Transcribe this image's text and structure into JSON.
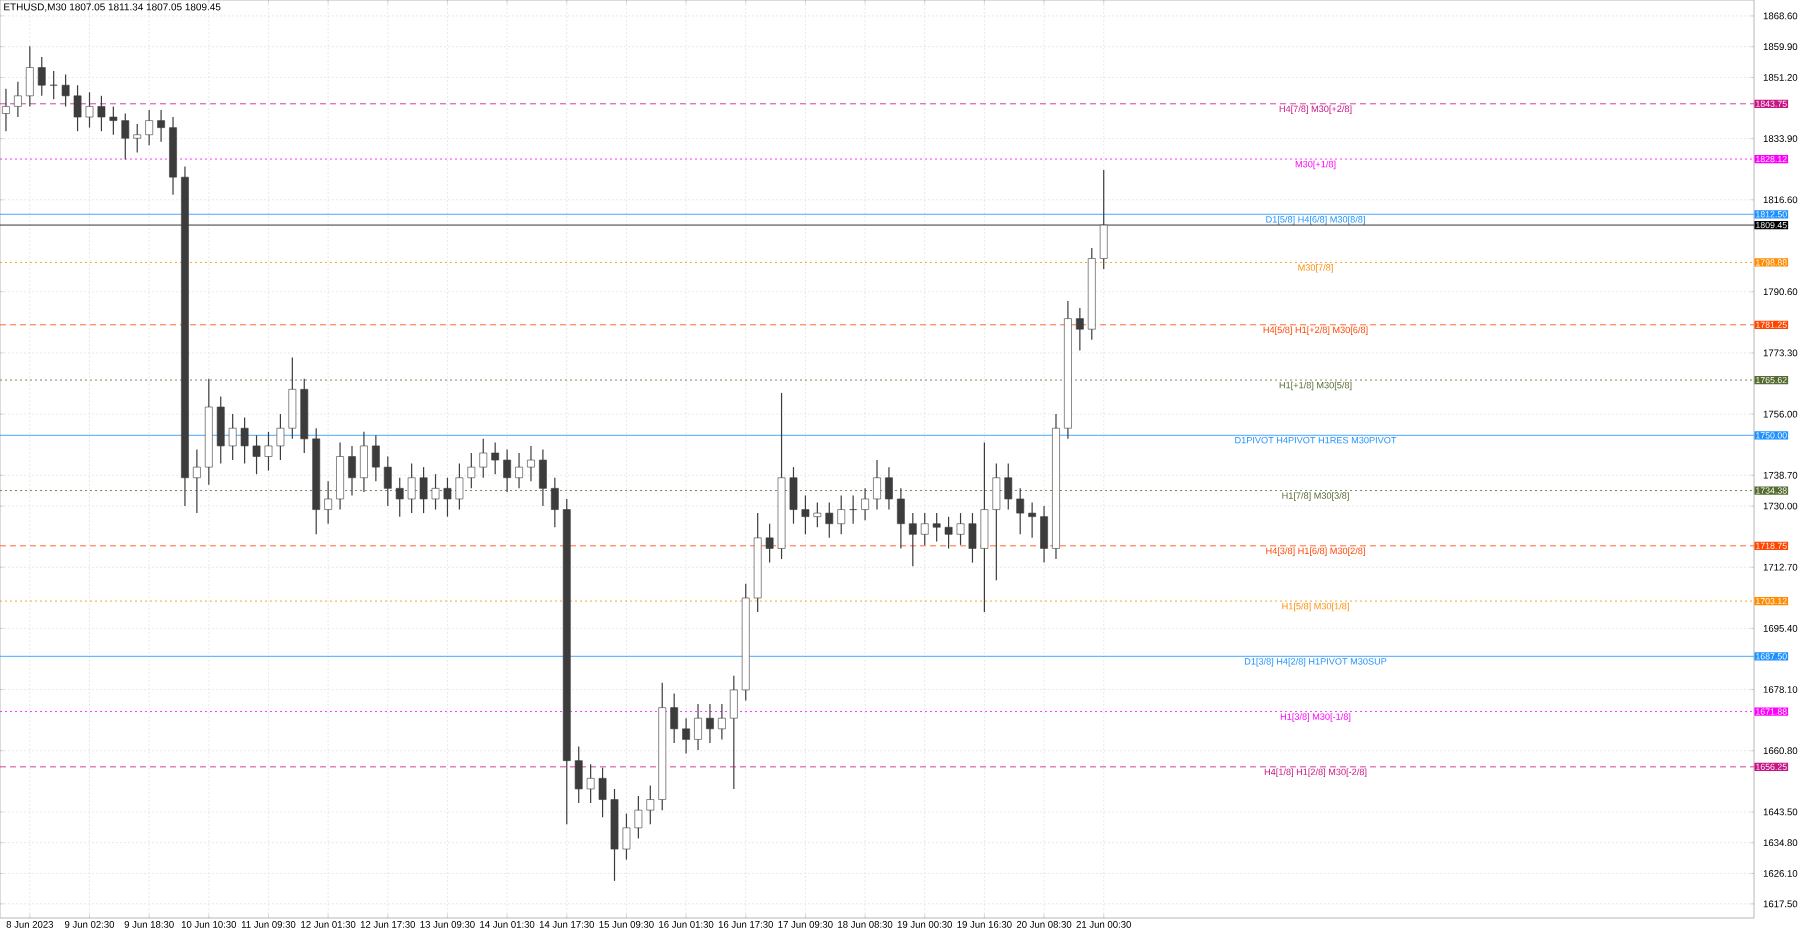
{
  "chart_data": {
    "type": "candlestick",
    "title": "ETHUSD,M30 1807.05 1811.34 1807.05 1809.45",
    "color": "#3c3c3c",
    "grid": true,
    "categories": [
      null,
      null,
      "8 Jun 2023",
      null,
      null,
      null,
      null,
      "9 Jun 02:30",
      null,
      null,
      null,
      null,
      "9 Jun 18:30",
      null,
      null,
      null,
      null,
      "10 Jun 10:30",
      null,
      null,
      null,
      null,
      "11 Jun 09:30",
      null,
      null,
      null,
      null,
      "12 Jun 01:30",
      null,
      null,
      null,
      null,
      "12 Jun 17:30",
      null,
      null,
      null,
      null,
      "13 Jun 09:30",
      null,
      null,
      null,
      null,
      "14 Jun 01:30",
      null,
      null,
      null,
      null,
      "14 Jun 17:30",
      null,
      null,
      null,
      null,
      "15 Jun 09:30",
      null,
      null,
      null,
      null,
      "16 Jun 01:30",
      null,
      null,
      null,
      null,
      "16 Jun 17:30",
      null,
      null,
      null,
      null,
      "17 Jun 09:30",
      null,
      null,
      null,
      null,
      "18 Jun 08:30",
      null,
      null,
      null,
      null,
      "19 Jun 00:30",
      null,
      null,
      null,
      null,
      "19 Jun 16:30",
      null,
      null,
      null,
      null,
      "20 Jun 08:30",
      null,
      null,
      null,
      null,
      "21 Jun 00:30",
      null,
      null,
      null,
      null,
      null,
      null,
      null,
      null,
      null,
      null,
      null,
      null,
      null,
      null,
      null,
      null,
      null,
      null,
      null,
      null,
      null,
      null,
      null,
      null,
      null,
      null,
      null,
      null,
      null,
      null,
      null,
      null,
      null,
      null,
      null,
      null,
      null,
      null,
      null,
      null,
      null,
      null,
      null,
      null,
      null,
      null,
      null,
      null,
      null,
      null,
      null,
      null,
      null,
      null
    ],
    "ohlc": [
      [
        1841,
        1848,
        1836,
        1843
      ],
      [
        1843,
        1850,
        1840,
        1846
      ],
      [
        1846,
        1860,
        1843,
        1854
      ],
      [
        1854,
        1857,
        1846,
        1849
      ],
      [
        1849,
        1853,
        1845,
        1849
      ],
      [
        1849,
        1852,
        1843,
        1846
      ],
      [
        1846,
        1849,
        1836,
        1840
      ],
      [
        1840,
        1847,
        1837,
        1843
      ],
      [
        1843,
        1846,
        1836,
        1840
      ],
      [
        1840,
        1843,
        1835,
        1839
      ],
      [
        1839,
        1841,
        1828,
        1834
      ],
      [
        1834,
        1838,
        1830,
        1835
      ],
      [
        1835,
        1842,
        1832,
        1839
      ],
      [
        1839,
        1842,
        1833,
        1837
      ],
      [
        1837,
        1840,
        1818,
        1823
      ],
      [
        1823,
        1826,
        1730,
        1738
      ],
      [
        1738,
        1746,
        1728,
        1741
      ],
      [
        1741,
        1766,
        1736,
        1758
      ],
      [
        1758,
        1761,
        1742,
        1747
      ],
      [
        1747,
        1756,
        1743,
        1752
      ],
      [
        1752,
        1755,
        1742,
        1747
      ],
      [
        1747,
        1750,
        1739,
        1744
      ],
      [
        1744,
        1751,
        1740,
        1747
      ],
      [
        1747,
        1756,
        1743,
        1752
      ],
      [
        1752,
        1772,
        1749,
        1763
      ],
      [
        1763,
        1766,
        1745,
        1749
      ],
      [
        1749,
        1752,
        1722,
        1729
      ],
      [
        1729,
        1737,
        1725,
        1732
      ],
      [
        1732,
        1748,
        1729,
        1744
      ],
      [
        1744,
        1747,
        1733,
        1738
      ],
      [
        1738,
        1751,
        1734,
        1747
      ],
      [
        1747,
        1750,
        1737,
        1741
      ],
      [
        1741,
        1744,
        1730,
        1735
      ],
      [
        1735,
        1738,
        1727,
        1732
      ],
      [
        1732,
        1742,
        1728,
        1738
      ],
      [
        1738,
        1741,
        1728,
        1732
      ],
      [
        1732,
        1739,
        1729,
        1735
      ],
      [
        1735,
        1738,
        1727,
        1732
      ],
      [
        1732,
        1742,
        1729,
        1738
      ],
      [
        1738,
        1745,
        1735,
        1741
      ],
      [
        1741,
        1749,
        1738,
        1745
      ],
      [
        1745,
        1748,
        1739,
        1743
      ],
      [
        1743,
        1746,
        1734,
        1738
      ],
      [
        1738,
        1745,
        1735,
        1741
      ],
      [
        1741,
        1747,
        1737,
        1743
      ],
      [
        1743,
        1746,
        1730,
        1735
      ],
      [
        1735,
        1738,
        1724,
        1729
      ],
      [
        1729,
        1732,
        1640,
        1658
      ],
      [
        1658,
        1662,
        1646,
        1650
      ],
      [
        1650,
        1657,
        1646,
        1653
      ],
      [
        1653,
        1656,
        1642,
        1647
      ],
      [
        1647,
        1650,
        1624,
        1633
      ],
      [
        1633,
        1643,
        1630,
        1639
      ],
      [
        1639,
        1648,
        1636,
        1644
      ],
      [
        1644,
        1651,
        1640,
        1647
      ],
      [
        1647,
        1680,
        1644,
        1673
      ],
      [
        1673,
        1677,
        1663,
        1667
      ],
      [
        1667,
        1670,
        1660,
        1664
      ],
      [
        1664,
        1674,
        1661,
        1670
      ],
      [
        1670,
        1674,
        1663,
        1667
      ],
      [
        1667,
        1674,
        1664,
        1670
      ],
      [
        1670,
        1682,
        1650,
        1678
      ],
      [
        1678,
        1708,
        1675,
        1704
      ],
      [
        1704,
        1728,
        1700,
        1721
      ],
      [
        1721,
        1725,
        1714,
        1718
      ],
      [
        1718,
        1762,
        1715,
        1738
      ],
      [
        1738,
        1741,
        1725,
        1729
      ],
      [
        1729,
        1733,
        1722,
        1727
      ],
      [
        1727,
        1731,
        1724,
        1728
      ],
      [
        1728,
        1731,
        1721,
        1725
      ],
      [
        1725,
        1733,
        1722,
        1729
      ],
      [
        1729,
        1733,
        1725,
        1729
      ],
      [
        1729,
        1735,
        1726,
        1732
      ],
      [
        1732,
        1743,
        1729,
        1738
      ],
      [
        1738,
        1741,
        1729,
        1732
      ],
      [
        1732,
        1735,
        1718,
        1725
      ],
      [
        1725,
        1728,
        1713,
        1722
      ],
      [
        1722,
        1728,
        1719,
        1725
      ],
      [
        1725,
        1728,
        1720,
        1724
      ],
      [
        1724,
        1727,
        1718,
        1722
      ],
      [
        1722,
        1728,
        1719,
        1725
      ],
      [
        1725,
        1728,
        1714,
        1718
      ],
      [
        1718,
        1748,
        1700,
        1729
      ],
      [
        1729,
        1742,
        1709,
        1738
      ],
      [
        1738,
        1742,
        1729,
        1732
      ],
      [
        1732,
        1735,
        1722,
        1728
      ],
      [
        1728,
        1731,
        1721,
        1727
      ],
      [
        1727,
        1730,
        1714,
        1718
      ],
      [
        1718,
        1756,
        1715,
        1752
      ],
      [
        1752,
        1788,
        1749,
        1783
      ],
      [
        1783,
        1786,
        1774,
        1780
      ],
      [
        1780,
        1803,
        1777,
        1800
      ],
      [
        1800,
        1825,
        1797,
        1809.45
      ],
      null,
      null,
      null,
      null,
      null,
      null,
      null,
      null,
      null,
      null,
      null,
      null,
      null,
      null,
      null,
      null,
      null,
      null,
      null,
      null,
      null,
      null,
      null,
      null,
      null,
      null,
      null,
      null,
      null,
      null,
      null,
      null,
      null,
      null,
      null,
      null,
      null,
      null,
      null,
      null,
      null,
      null,
      null,
      null,
      null,
      null,
      null,
      null,
      null,
      null,
      null,
      null,
      null,
      null
    ],
    "ylim": [
      1613.5,
      1873.1
    ],
    "yticks": [
      {
        "value": 1868.6,
        "label": "1868.60"
      },
      {
        "value": 1859.9,
        "label": "1859.90"
      },
      {
        "value": 1851.2,
        "label": "1851.20"
      },
      {
        "value": 1833.9,
        "label": "1833.90"
      },
      {
        "value": 1816.6,
        "label": "1816.60"
      },
      {
        "value": 1790.6,
        "label": "1790.60"
      },
      {
        "value": 1773.3,
        "label": "1773.30"
      },
      {
        "value": 1756.0,
        "label": "1756.00"
      },
      {
        "value": 1738.7,
        "label": "1738.70"
      },
      {
        "value": 1730.0,
        "label": "1730.00"
      },
      {
        "value": 1712.7,
        "label": "1712.70"
      },
      {
        "value": 1695.4,
        "label": "1695.40"
      },
      {
        "value": 1678.1,
        "label": "1678.10"
      },
      {
        "value": 1660.8,
        "label": "1660.80"
      },
      {
        "value": 1643.5,
        "label": "1643.50"
      },
      {
        "value": 1634.8,
        "label": "1634.80"
      },
      {
        "value": 1626.1,
        "label": "1626.10"
      },
      {
        "value": 1617.5,
        "label": "1617.50"
      }
    ],
    "ref_lines": [
      {
        "axis": "y",
        "value": 1843.75,
        "label": "H4[7/8] M30[+2/8]",
        "color": "#c71585",
        "line_style": "dashed"
      },
      {
        "axis": "y",
        "value": 1828.12,
        "label": "M30[+1/8]",
        "color": "#ff00ff",
        "line_style": "dotted"
      },
      {
        "axis": "y",
        "value": 1812.5,
        "label": "D1[5/8] H4[6/8] M30[8/8]",
        "color": "#1e90ff",
        "line_style": "solid"
      },
      {
        "axis": "y",
        "value": 1809.45,
        "color": "#000000",
        "line_style": "solid"
      },
      {
        "axis": "y",
        "value": 1798.88,
        "label": "M30[7/8]",
        "color": "#ff8c00",
        "line_style": "dotted"
      },
      {
        "axis": "y",
        "value": 1781.25,
        "label": "H4[5/8] H1[+2/8] M30[6/8]",
        "color": "#ff4500",
        "line_style": "dashed"
      },
      {
        "axis": "y",
        "value": 1765.62,
        "label": "H1[+1/8] M30[5/8]",
        "color": "#556b2f",
        "line_style": "dotted"
      },
      {
        "axis": "y",
        "value": 1750.0,
        "label": "D1PIVOT H4PIVOT H1RES M30PIVOT",
        "color": "#1e90ff",
        "line_style": "solid"
      },
      {
        "axis": "y",
        "value": 1734.38,
        "label": "H1[7/8] M30[3/8]",
        "color": "#556b2f",
        "line_style": "dotted"
      },
      {
        "axis": "y",
        "value": 1718.75,
        "label": "H4[3/8] H1[6/8] M30[2/8]",
        "color": "#ff4500",
        "line_style": "dashed"
      },
      {
        "axis": "y",
        "value": 1703.12,
        "label": "H1[5/8] M30[1/8]",
        "color": "#ff8c00",
        "line_style": "dotted"
      },
      {
        "axis": "y",
        "value": 1687.5,
        "label": "D1[3/8] H4[2/8] H1PIVOT M30SUP",
        "color": "#1e90ff",
        "line_style": "solid"
      },
      {
        "axis": "y",
        "value": 1671.88,
        "label": "H1[3/8] M30[-1/8]",
        "color": "#ff00ff",
        "line_style": "dotted"
      },
      {
        "axis": "y",
        "value": 1656.25,
        "label": "H4[1/8] H1[2/8] M30[-2/8]",
        "color": "#c71585",
        "line_style": "dashed"
      }
    ],
    "annotations": [
      "1843.75",
      "1828.12",
      "1812.50",
      "1809.45",
      "1798.88",
      "1781.25",
      "1765.62",
      "1750.00",
      "1734.38",
      "1718.75",
      "1703.12",
      "1687.50",
      "1671.88",
      "1656.25"
    ]
  }
}
